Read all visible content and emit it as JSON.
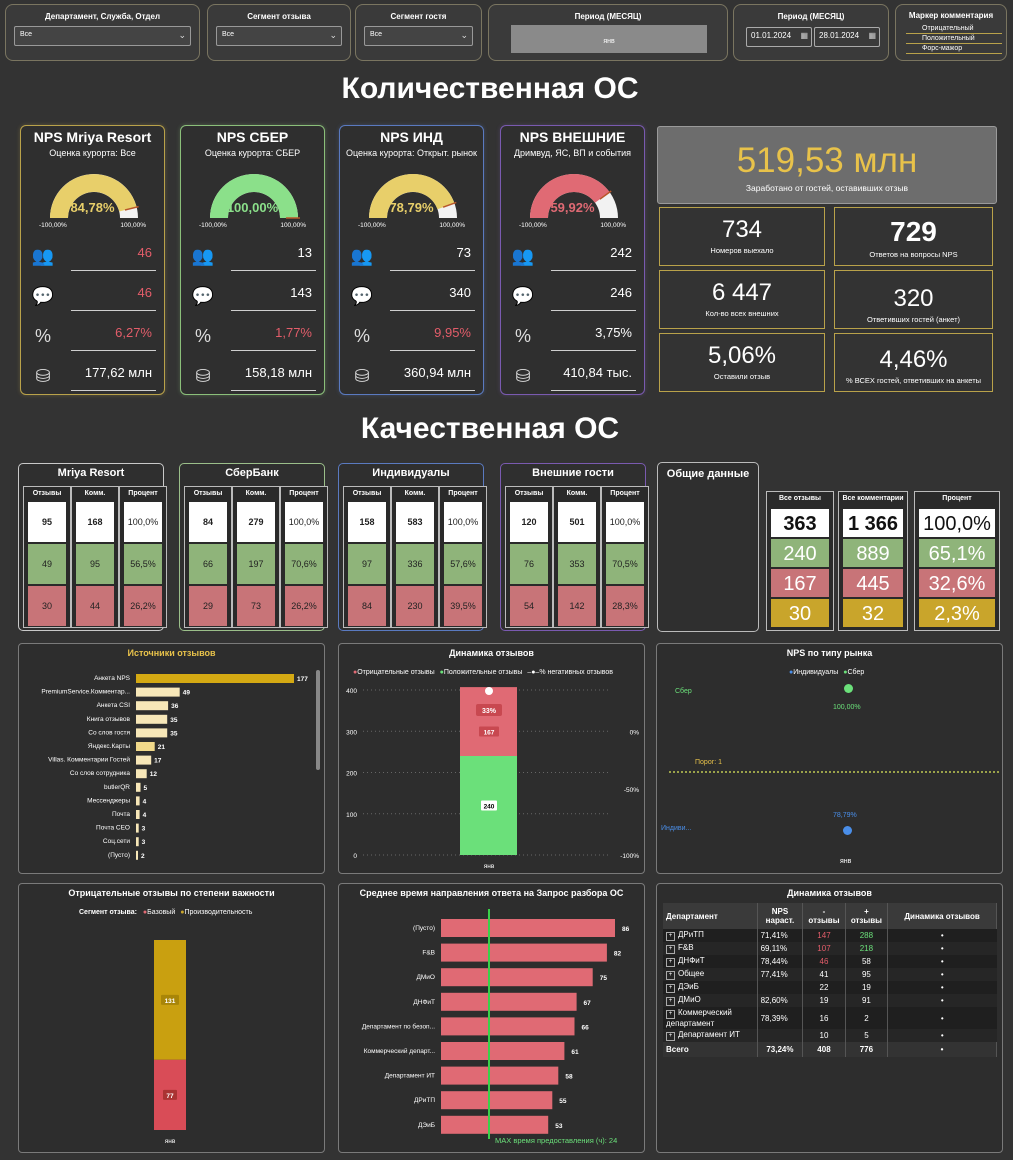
{
  "filters": {
    "dept": {
      "label": "Департамент, Служба, Отдел",
      "value": "Все"
    },
    "segment_review": {
      "label": "Сегмент отзыва",
      "value": "Все"
    },
    "segment_guest": {
      "label": "Сегмент гостя",
      "value": "Все"
    },
    "period_month": {
      "label": "Период (МЕСЯЦ)",
      "value": "янв"
    },
    "period_range": {
      "label": "Период (МЕСЯЦ)",
      "from": "01.01.2024",
      "to": "28.01.2024"
    },
    "marker": {
      "label": "Маркер комментария",
      "options": [
        "Отрицательный",
        "Положительный",
        "Форс-мажор"
      ]
    }
  },
  "section1_title": "Количественная ОС",
  "section2_title": "Качественная ОС",
  "nps_cards": [
    {
      "title": "NPS Mriya Resort",
      "sub": "Оценка курорта: Все",
      "gauge": "84,78%",
      "gauge_pct": 0.92,
      "color": "#e8cf6a",
      "min": "-100,00%",
      "max": "100,00%",
      "v1": "46",
      "v2": "46",
      "v3": "6,27%",
      "v4": "177,62 млн",
      "red1": true,
      "red2": true,
      "red3": true
    },
    {
      "title": "NPS СБЕР",
      "sub": "Оценка курорта: СБЕР",
      "gauge": "100,00%",
      "gauge_pct": 1.0,
      "color": "#8be08a",
      "min": "-100,00%",
      "max": "100,00%",
      "v1": "13",
      "v2": "143",
      "v3": "1,77%",
      "v4": "158,18 млн",
      "red1": false,
      "red2": false,
      "red3": true
    },
    {
      "title": "NPS ИНД",
      "sub": "Оценка курорта: Открыт. рынок",
      "gauge": "78,79%",
      "gauge_pct": 0.89,
      "color": "#e8cf6a",
      "min": "-100,00%",
      "max": "100,00%",
      "v1": "73",
      "v2": "340",
      "v3": "9,95%",
      "v4": "360,94 млн",
      "red1": false,
      "red2": false,
      "red3": true
    },
    {
      "title": "NPS ВНЕШНИЕ",
      "sub": "Дримвуд, ЯС, ВП и события",
      "gauge": "59,92%",
      "gauge_pct": 0.8,
      "color": "#e06a74",
      "min": "-100,00%",
      "max": "100,00%",
      "v1": "242",
      "v2": "246",
      "v3": "3,75%",
      "v4": "410,84 тыс.",
      "red1": false,
      "red2": false,
      "red3": false
    }
  ],
  "earned": {
    "value": "519,53 млн",
    "caption": "Заработано от гостей, оставивших отзыв"
  },
  "kpis": [
    {
      "value": "734",
      "caption": "Номеров выехало"
    },
    {
      "value": "729",
      "caption": "Ответов на вопросы NPS"
    },
    {
      "value": "6 447",
      "caption": "Кол-во всех внешних"
    },
    {
      "value": "320",
      "caption": "Ответивших гостей (анкет)"
    },
    {
      "value": "5,06%",
      "caption": "Оставили отзыв"
    },
    {
      "value": "4,46%",
      "caption": "% ВСЕХ гостей, ответивших на анкеты"
    }
  ],
  "q_headers": [
    "Отзывы",
    "Комм.",
    "Процент"
  ],
  "q_cards": [
    {
      "title": "Mriya Resort",
      "rows": [
        [
          "95",
          "168",
          "100,0%"
        ],
        [
          "49",
          "95",
          "56,5%"
        ],
        [
          "30",
          "44",
          "26,2%"
        ]
      ]
    },
    {
      "title": "СберБанк",
      "rows": [
        [
          "84",
          "279",
          "100,0%"
        ],
        [
          "66",
          "197",
          "70,6%"
        ],
        [
          "29",
          "73",
          "26,2%"
        ]
      ]
    },
    {
      "title": "Индивидуалы",
      "rows": [
        [
          "158",
          "583",
          "100,0%"
        ],
        [
          "97",
          "336",
          "57,6%"
        ],
        [
          "84",
          "230",
          "39,5%"
        ]
      ]
    },
    {
      "title": "Внешние гости",
      "rows": [
        [
          "120",
          "501",
          "100,0%"
        ],
        [
          "76",
          "353",
          "70,5%"
        ],
        [
          "54",
          "142",
          "28,3%"
        ]
      ]
    }
  ],
  "general": {
    "title": "Общие данные",
    "headers": [
      "Все отзывы",
      "Все комментарии",
      "Процент"
    ],
    "rows": [
      [
        "363",
        "1 366",
        "100,0%"
      ],
      [
        "240",
        "889",
        "65,1%"
      ],
      [
        "167",
        "445",
        "32,6%"
      ],
      [
        "30",
        "32",
        "2,3%"
      ]
    ]
  },
  "sources": {
    "title": "Источники отзывов",
    "chart_data": {
      "type": "bar",
      "categories": [
        "Анкета NPS",
        "PremiumService.Комментар...",
        "Анкета CSI",
        "Книга отзывов",
        "Со слов гостя",
        "Яндекс.Карты",
        "Villas. Комментарии Гостей",
        "Со слов сотрудника",
        "butlerQR",
        "Мессенджеры",
        "Почта",
        "Почта CEO",
        "Соц.сети",
        "(Пусто)"
      ],
      "values": [
        177,
        49,
        36,
        35,
        35,
        21,
        17,
        12,
        5,
        4,
        4,
        3,
        3,
        2
      ]
    }
  },
  "dynamics": {
    "title": "Динамика отзывов",
    "legend": [
      "Отрицательные отзывы",
      "Положительные отзывы",
      "% негативных отзывов"
    ],
    "chart_data": {
      "type": "bar",
      "categories": [
        "янв"
      ],
      "series": [
        {
          "name": "Положительные отзывы",
          "values": [
            240
          ]
        },
        {
          "name": "Отрицательные отзывы",
          "values": [
            167
          ]
        },
        {
          "name": "% негативных отзывов",
          "values": [
            "33%"
          ]
        }
      ],
      "ylim": [
        0,
        400
      ],
      "yticks": [
        "400",
        "300",
        "200",
        "100",
        "0"
      ],
      "y2ticks": [
        "0%",
        "-50%",
        "-100%"
      ]
    }
  },
  "nps_market": {
    "title": "NPS по типу рынка",
    "legend": [
      "Индивидуалы",
      "Сбер"
    ],
    "threshold": "Порог: 1",
    "chart_data": {
      "type": "scatter",
      "series": [
        {
          "name": "Сбер",
          "label": "Сбер",
          "value": "100,00%"
        },
        {
          "name": "Индивидуалы",
          "label": "Индиви...",
          "value": "78,79%"
        }
      ],
      "x": [
        "янв"
      ]
    }
  },
  "negative": {
    "title": "Отрицательные отзывы по степени важности",
    "legend_title": "Сегмент отзыва:",
    "legend": [
      "Базовый",
      "Производительность"
    ],
    "chart_data": {
      "type": "bar",
      "categories": [
        "янв"
      ],
      "series": [
        {
          "name": "Базовый",
          "values": [
            77
          ]
        },
        {
          "name": "Производительность",
          "values": [
            131
          ]
        }
      ]
    }
  },
  "response_time": {
    "title": "Среднее время направления ответа на Запрос разбора ОС",
    "footer": "MAX время предоставления (ч): 24",
    "chart_data": {
      "type": "bar",
      "categories": [
        "(Пусто)",
        "F&B",
        "ДМиО",
        "ДНФиТ",
        "Департамент по безоп...",
        "Коммерческий департ...",
        "Департамент ИТ",
        "ДРиТП",
        "ДЭиБ"
      ],
      "values": [
        86,
        82,
        75,
        67,
        66,
        61,
        58,
        55,
        53
      ]
    }
  },
  "dyn_table": {
    "title": "Динамика отзывов",
    "headers": [
      "Департамент",
      "NPS нараст.",
      "- отзывы",
      "+ отзывы",
      "Динамика отзывов"
    ],
    "rows": [
      [
        "ДРиТП",
        "71,41%",
        "147",
        "288",
        "•"
      ],
      [
        "F&B",
        "69,11%",
        "107",
        "218",
        "•"
      ],
      [
        "ДНФиТ",
        "78,44%",
        "46",
        "58",
        "•"
      ],
      [
        "Общее",
        "77,41%",
        "41",
        "95",
        "•"
      ],
      [
        "ДЭиБ",
        "",
        "22",
        "19",
        "•"
      ],
      [
        "ДМиО",
        "82,60%",
        "19",
        "91",
        "•"
      ],
      [
        "Коммерческий департамент",
        "78,39%",
        "16",
        "2",
        "•"
      ],
      [
        "Департамент ИТ",
        "",
        "10",
        "5",
        "•"
      ]
    ],
    "total": [
      "Всего",
      "73,24%",
      "408",
      "776",
      "•"
    ]
  }
}
